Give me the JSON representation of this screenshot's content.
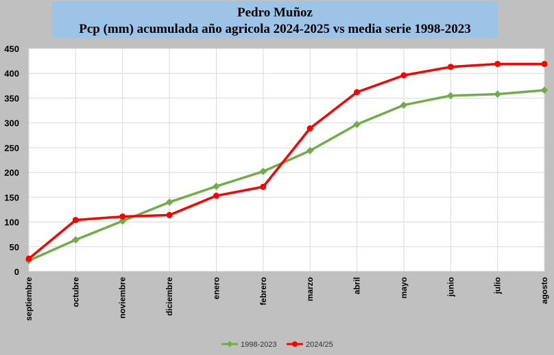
{
  "chart_data": {
    "type": "line",
    "title": "Pedro Muñoz",
    "subtitle": "Pcp (mm) acumulada año agricola 2024-2025 vs media serie 1998-2023",
    "xlabel": "",
    "ylabel": "",
    "ylim": [
      0,
      450
    ],
    "yticks": [
      0,
      50,
      100,
      150,
      200,
      250,
      300,
      350,
      400,
      450
    ],
    "categories": [
      "septiembre",
      "octubre",
      "noviembre",
      "diciembre",
      "enero",
      "febrero",
      "marzo",
      "abril",
      "mayo",
      "junio",
      "julio",
      "agosto"
    ],
    "grid": true,
    "legend_position": "bottom",
    "series": [
      {
        "name": "1998-2023",
        "color": "#70ad47",
        "values": [
          22,
          64,
          102,
          140,
          172,
          202,
          244,
          297,
          336,
          355,
          358,
          366
        ]
      },
      {
        "name": "2024/25",
        "color": "#ff0000",
        "values": [
          26,
          104,
          111,
          114,
          153,
          171,
          289,
          362,
          396,
          413,
          419,
          419
        ]
      }
    ]
  }
}
